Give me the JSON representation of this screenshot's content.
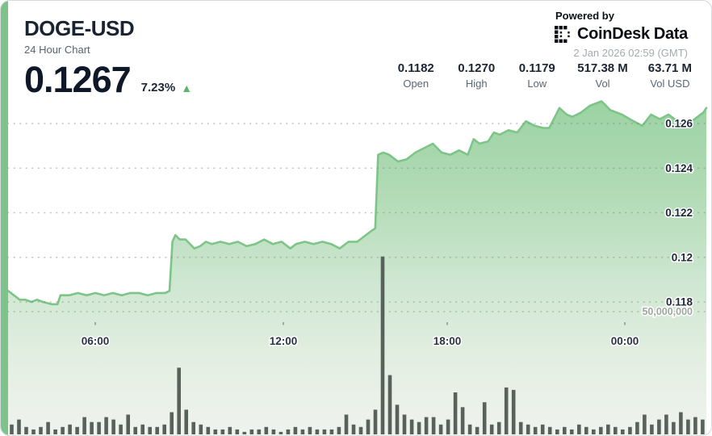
{
  "card": {
    "title": "DOGE-USD",
    "subtitle": "24 Hour Chart",
    "price": "0.1267",
    "change_pct": "7.23%",
    "change_direction": "up",
    "powered_by": "Powered by",
    "brand_primary": "CoinDesk",
    "brand_secondary": "Data",
    "timestamp": "2 Jan 2026 02:59 (GMT)",
    "stats": [
      {
        "value": "0.1182",
        "label": "Open"
      },
      {
        "value": "0.1270",
        "label": "High"
      },
      {
        "value": "0.1179",
        "label": "Low"
      },
      {
        "value": "517.38 M",
        "label": "Vol"
      },
      {
        "value": "63.71 M",
        "label": "Vol USD"
      }
    ]
  },
  "colors": {
    "accent_stripe": "#7dc389",
    "price_line": "#7cc587",
    "area_top": "#9bd2a3",
    "area_mid": "#cfe7d2",
    "area_bottom": "#eff3ee",
    "volume_bar": "#59625a",
    "grid_dot": "#6e8273",
    "axis_text_dark": "#1e2837",
    "axis_text_gray": "#9fa79f",
    "up_green": "#57b86a"
  },
  "chart_data": {
    "type": "area",
    "title": "DOGE-USD 24 Hour Chart",
    "x_tick_labels": [
      "06:00",
      "12:00",
      "18:00",
      "00:00"
    ],
    "y_tick_labels": [
      "0.126",
      "0.124",
      "0.122",
      "0.12",
      "0.118"
    ],
    "y_tick_values": [
      0.126,
      0.124,
      0.122,
      0.12,
      0.118
    ],
    "ylim_price": [
      0.1176,
      0.1272
    ],
    "volume_grid_label": "50,000,000",
    "volume_grid_value_millions": 50,
    "hours_span": 24,
    "legend": "none",
    "grid": "dotted-horizontal",
    "series": [
      {
        "name": "price",
        "type": "line-area",
        "unit": "USD",
        "points_hour_price": [
          [
            0,
            0.1185
          ],
          [
            0.2,
            0.1183
          ],
          [
            0.4,
            0.1181
          ],
          [
            0.6,
            0.1181
          ],
          [
            0.8,
            0.118
          ],
          [
            1,
            0.1181
          ],
          [
            1.2,
            0.118
          ],
          [
            1.5,
            0.1179
          ],
          [
            1.7,
            0.1179
          ],
          [
            1.8,
            0.1183
          ],
          [
            2.1,
            0.1183
          ],
          [
            2.4,
            0.1184
          ],
          [
            2.7,
            0.1183
          ],
          [
            3,
            0.1184
          ],
          [
            3.3,
            0.1183
          ],
          [
            3.6,
            0.1184
          ],
          [
            3.9,
            0.1183
          ],
          [
            4.2,
            0.1184
          ],
          [
            4.5,
            0.1184
          ],
          [
            4.8,
            0.1183
          ],
          [
            5.1,
            0.1184
          ],
          [
            5.4,
            0.1184
          ],
          [
            5.55,
            0.1185
          ],
          [
            5.65,
            0.1207
          ],
          [
            5.75,
            0.121
          ],
          [
            5.9,
            0.1208
          ],
          [
            6.1,
            0.1208
          ],
          [
            6.4,
            0.1204
          ],
          [
            6.6,
            0.1205
          ],
          [
            6.8,
            0.1207
          ],
          [
            7,
            0.1206
          ],
          [
            7.3,
            0.1207
          ],
          [
            7.6,
            0.1206
          ],
          [
            7.9,
            0.1207
          ],
          [
            8.2,
            0.1205
          ],
          [
            8.5,
            0.1206
          ],
          [
            8.8,
            0.1208
          ],
          [
            9.1,
            0.1206
          ],
          [
            9.4,
            0.1207
          ],
          [
            9.7,
            0.1204
          ],
          [
            9.9,
            0.1206
          ],
          [
            10.2,
            0.1207
          ],
          [
            10.5,
            0.1206
          ],
          [
            10.8,
            0.1207
          ],
          [
            11.1,
            0.1206
          ],
          [
            11.4,
            0.1204
          ],
          [
            11.7,
            0.1207
          ],
          [
            12,
            0.1207
          ],
          [
            12.3,
            0.121
          ],
          [
            12.5,
            0.1212
          ],
          [
            12.62,
            0.1213
          ],
          [
            12.72,
            0.1246
          ],
          [
            12.9,
            0.1247
          ],
          [
            13.1,
            0.1246
          ],
          [
            13.4,
            0.1243
          ],
          [
            13.7,
            0.1244
          ],
          [
            14,
            0.1247
          ],
          [
            14.3,
            0.1249
          ],
          [
            14.6,
            0.1251
          ],
          [
            14.9,
            0.1247
          ],
          [
            15.2,
            0.1246
          ],
          [
            15.5,
            0.1248
          ],
          [
            15.8,
            0.1246
          ],
          [
            16,
            0.1253
          ],
          [
            16.2,
            0.1251
          ],
          [
            16.5,
            0.1252
          ],
          [
            16.7,
            0.1256
          ],
          [
            16.9,
            0.1255
          ],
          [
            17.2,
            0.1257
          ],
          [
            17.5,
            0.1256
          ],
          [
            17.8,
            0.1261
          ],
          [
            18.1,
            0.1259
          ],
          [
            18.4,
            0.1258
          ],
          [
            18.6,
            0.1258
          ],
          [
            18.95,
            0.1267
          ],
          [
            19.2,
            0.1264
          ],
          [
            19.4,
            0.1263
          ],
          [
            19.7,
            0.1265
          ],
          [
            20,
            0.1268
          ],
          [
            20.4,
            0.127
          ],
          [
            20.7,
            0.1266
          ],
          [
            21.1,
            0.1264
          ],
          [
            21.5,
            0.1261
          ],
          [
            21.8,
            0.1259
          ],
          [
            22.1,
            0.1264
          ],
          [
            22.4,
            0.1262
          ],
          [
            22.7,
            0.1264
          ],
          [
            23,
            0.1261
          ],
          [
            23.2,
            0.126
          ],
          [
            23.5,
            0.1261
          ],
          [
            23.7,
            0.1263
          ],
          [
            23.9,
            0.1265
          ],
          [
            24,
            0.1267
          ]
        ]
      },
      {
        "name": "volume",
        "type": "bar",
        "unit": "millions",
        "interval_minutes": 15,
        "values_millions": [
          4,
          6,
          3,
          2,
          3,
          5,
          2,
          3,
          4,
          3,
          7,
          5,
          5,
          7,
          6,
          4,
          8,
          3,
          4,
          3,
          3,
          4,
          9,
          27,
          10,
          5,
          4,
          3,
          2,
          2,
          3,
          2,
          1,
          2,
          2,
          3,
          2,
          1,
          2,
          3,
          2,
          3,
          2,
          2,
          2,
          3,
          8,
          4,
          3,
          6,
          10,
          72,
          24,
          12,
          8,
          6,
          5,
          7,
          7,
          4,
          6,
          17,
          11,
          4,
          3,
          13,
          4,
          5,
          19,
          18,
          5,
          4,
          3,
          4,
          3,
          2,
          3,
          2,
          4,
          3,
          2,
          3,
          4,
          3,
          2,
          3,
          5,
          8,
          4,
          6,
          8,
          5,
          9,
          6,
          7,
          6
        ]
      }
    ]
  }
}
